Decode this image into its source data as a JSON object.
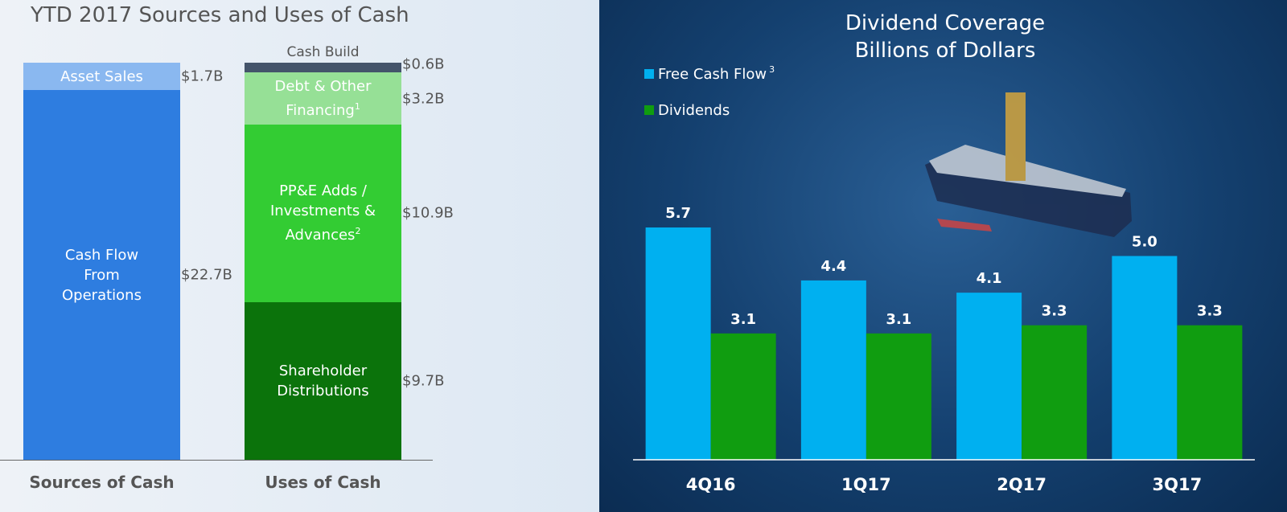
{
  "chart_data": [
    {
      "type": "stacked_bar",
      "title": "YTD 2017 Sources and Uses of Cash",
      "categories": [
        "Sources of Cash",
        "Uses of Cash"
      ],
      "stacks": [
        [
          {
            "name": "Cash Flow From Operations",
            "value": 22.7,
            "value_label": "$22.7B",
            "color": "#2e7de0"
          },
          {
            "name": "Asset Sales",
            "value": 1.7,
            "value_label": "$1.7B",
            "color": "#8ab8f0"
          }
        ],
        [
          {
            "name": "Shareholder Distributions",
            "value": 9.7,
            "value_label": "$9.7B",
            "color": "#0b730b"
          },
          {
            "name": "PP&E Adds / Investments & Advances",
            "footnote": "2",
            "value": 10.9,
            "value_label": "$10.9B",
            "color": "#33cc33"
          },
          {
            "name": "Debt & Other Financing",
            "footnote": "1",
            "value": 3.2,
            "value_label": "$3.2B",
            "color": "#96e096"
          },
          {
            "name": "Cash Build",
            "value": 0.6,
            "value_label": "$0.6B",
            "color": "#44546a"
          }
        ]
      ]
    },
    {
      "type": "bar",
      "title": "Dividend Coverage",
      "subtitle": "Billions of Dollars",
      "categories": [
        "4Q16",
        "1Q17",
        "2Q17",
        "3Q17"
      ],
      "series": [
        {
          "name": "Free Cash Flow",
          "footnote": "3",
          "color": "#00b0f0",
          "values": [
            5.7,
            4.4,
            4.1,
            5.0
          ],
          "value_labels": [
            "5.7",
            "4.4",
            "4.1",
            "5.0"
          ]
        },
        {
          "name": "Dividends",
          "color": "#109d10",
          "values": [
            3.1,
            3.1,
            3.3,
            3.3
          ]
        }
      ]
    }
  ]
}
